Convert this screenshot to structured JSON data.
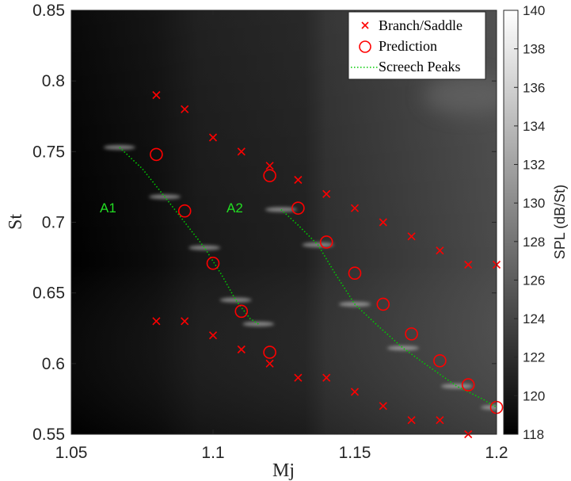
{
  "chart_data": {
    "type": "heatmap",
    "xlabel": "Mj",
    "ylabel": "St",
    "xlim": [
      1.05,
      1.2
    ],
    "ylim": [
      0.55,
      0.85
    ],
    "xticks": [
      1.05,
      1.1,
      1.15,
      1.2
    ],
    "xtick_labels": [
      "1.05",
      "1.1",
      "1.15",
      "1.2"
    ],
    "yticks": [
      0.55,
      0.6,
      0.65,
      0.7,
      0.75,
      0.8,
      0.85
    ],
    "ytick_labels": [
      "0.55",
      "0.6",
      "0.65",
      "0.7",
      "0.75",
      "0.8",
      "0.85"
    ],
    "colorbar": {
      "label": "SPL (dB/St)",
      "range": [
        118,
        140
      ],
      "ticks": [
        118,
        120,
        122,
        124,
        126,
        128,
        130,
        132,
        134,
        136,
        138,
        140
      ],
      "tick_labels": [
        "118",
        "120",
        "122",
        "124",
        "126",
        "128",
        "130",
        "132",
        "134",
        "136",
        "138",
        "140"
      ],
      "colormap": "gray"
    },
    "legend": {
      "placement": "top-right",
      "entries": [
        {
          "label": "Branch/Saddle",
          "marker": "x",
          "color": "#ff0000"
        },
        {
          "label": "Prediction",
          "marker": "o",
          "color": "#ff0000"
        },
        {
          "label": "Screech Peaks",
          "marker": "dotted-line",
          "color": "#00cc00"
        }
      ]
    },
    "annotations": [
      {
        "text": "A1",
        "x": 1.061,
        "y": 0.707
      },
      {
        "text": "A2",
        "x": 1.118,
        "y": 0.707
      }
    ],
    "series": [
      {
        "name": "Branch/Saddle",
        "marker": "x",
        "points": [
          [
            1.08,
            0.79
          ],
          [
            1.09,
            0.78
          ],
          [
            1.1,
            0.76
          ],
          [
            1.11,
            0.75
          ],
          [
            1.12,
            0.74
          ],
          [
            1.13,
            0.73
          ],
          [
            1.14,
            0.72
          ],
          [
            1.15,
            0.71
          ],
          [
            1.16,
            0.7
          ],
          [
            1.17,
            0.69
          ],
          [
            1.18,
            0.68
          ],
          [
            1.19,
            0.67
          ],
          [
            1.2,
            0.67
          ],
          [
            1.08,
            0.63
          ],
          [
            1.09,
            0.63
          ],
          [
            1.1,
            0.62
          ],
          [
            1.11,
            0.61
          ],
          [
            1.12,
            0.6
          ],
          [
            1.13,
            0.59
          ],
          [
            1.14,
            0.59
          ],
          [
            1.15,
            0.58
          ],
          [
            1.16,
            0.57
          ],
          [
            1.17,
            0.56
          ],
          [
            1.18,
            0.56
          ],
          [
            1.19,
            0.55
          ]
        ]
      },
      {
        "name": "Prediction",
        "marker": "o",
        "points": [
          [
            1.08,
            0.748
          ],
          [
            1.09,
            0.708
          ],
          [
            1.1,
            0.671
          ],
          [
            1.11,
            0.637
          ],
          [
            1.12,
            0.608
          ],
          [
            1.12,
            0.733
          ],
          [
            1.13,
            0.71
          ],
          [
            1.14,
            0.686
          ],
          [
            1.15,
            0.664
          ],
          [
            1.16,
            0.642
          ],
          [
            1.17,
            0.621
          ],
          [
            1.18,
            0.602
          ],
          [
            1.19,
            0.585
          ],
          [
            1.2,
            0.569
          ]
        ]
      },
      {
        "name": "Screech Peaks",
        "marker": "dotted-line",
        "segments": [
          [
            [
              1.067,
              0.753
            ],
            [
              1.075,
              0.738
            ],
            [
              1.083,
              0.718
            ],
            [
              1.09,
              0.7
            ],
            [
              1.097,
              0.682
            ],
            [
              1.103,
              0.663
            ],
            [
              1.108,
              0.645
            ],
            [
              1.113,
              0.632
            ],
            [
              1.116,
              0.628
            ]
          ],
          [
            [
              1.124,
              0.709
            ],
            [
              1.13,
              0.698
            ],
            [
              1.137,
              0.684
            ],
            [
              1.143,
              0.664
            ],
            [
              1.15,
              0.642
            ],
            [
              1.158,
              0.627
            ],
            [
              1.167,
              0.611
            ],
            [
              1.176,
              0.598
            ],
            [
              1.186,
              0.584
            ],
            [
              1.195,
              0.575
            ],
            [
              1.2,
              0.569
            ]
          ]
        ]
      }
    ]
  }
}
